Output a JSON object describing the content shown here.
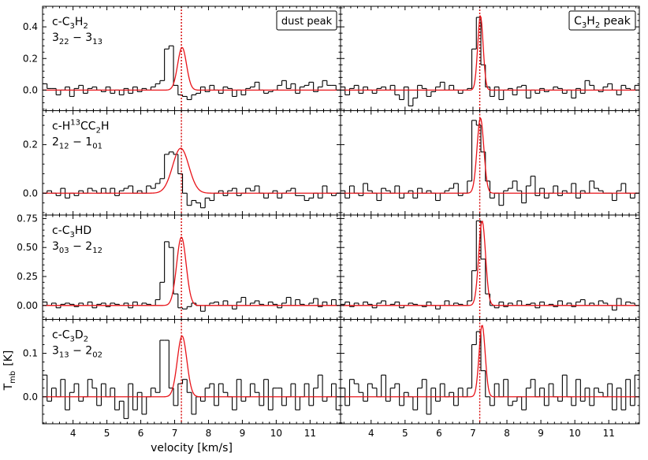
{
  "chart_data": {
    "type": "line",
    "xlabel": "velocity   [km/s]",
    "ylabel_main": "T",
    "ylabel_sub": "mb",
    "ylabel_unit": "[K]",
    "xlim": [
      3.1,
      11.9
    ],
    "xticks": [
      4,
      5,
      6,
      7,
      8,
      9,
      10,
      11
    ],
    "reference_velocity": 7.2,
    "column_titles": [
      {
        "main": "dust peak"
      },
      {
        "pre": "C",
        "s1": "3",
        "mid": "H",
        "s2": "2",
        "post": " peak"
      }
    ],
    "rows": [
      {
        "label_parts": [
          "c-C",
          {
            "sub": "3"
          },
          "H",
          {
            "sub": "2"
          }
        ],
        "transition_parts": [
          "3",
          {
            "sub": "22"
          },
          " − 3",
          {
            "sub": "13"
          }
        ],
        "ylim": [
          -0.13,
          0.53
        ],
        "yticks": [
          0.0,
          0.2,
          0.4
        ],
        "ytick_labels": [
          "0.0",
          "0.2",
          "0.4"
        ],
        "panels": [
          {
            "fit": {
              "amp": 0.27,
              "center": 7.22,
              "sigma": 0.13
            },
            "spectrum": [
              0.04,
              0.01,
              0.01,
              -0.03,
              0.0,
              0.02,
              -0.04,
              0.01,
              0.03,
              -0.02,
              0.01,
              0.02,
              0.0,
              -0.01,
              0.02,
              -0.02,
              0.0,
              -0.03,
              0.01,
              -0.02,
              0.02,
              -0.01,
              0.01,
              0.0,
              0.02,
              0.04,
              0.06,
              0.26,
              0.28,
              0.03,
              -0.03,
              -0.04,
              -0.06,
              -0.03,
              -0.02,
              0.02,
              -0.01,
              0.03,
              0.0,
              -0.02,
              0.02,
              0.01,
              -0.04,
              0.0,
              -0.03,
              0.01,
              0.02,
              0.05,
              0.0,
              -0.02,
              -0.01,
              0.0,
              0.03,
              0.06,
              0.01,
              0.04,
              -0.02,
              0.02,
              0.03,
              0.05,
              -0.01,
              0.02,
              0.06,
              0.03,
              0.03,
              0.0
            ]
          },
          {
            "fit": {
              "amp": 0.47,
              "center": 7.22,
              "sigma": 0.08
            },
            "spectrum": [
              0.02,
              -0.03,
              0.01,
              0.03,
              -0.02,
              0.02,
              0.0,
              -0.02,
              0.01,
              0.02,
              0.0,
              0.03,
              -0.03,
              -0.06,
              0.02,
              -0.1,
              -0.05,
              0.03,
              0.01,
              -0.04,
              -0.01,
              0.02,
              0.05,
              0.0,
              0.03,
              0.0,
              -0.02,
              0.0,
              0.01,
              0.26,
              0.46,
              0.16,
              0.02,
              -0.04,
              0.02,
              -0.06,
              0.0,
              0.01,
              -0.03,
              0.02,
              0.03,
              -0.05,
              0.0,
              -0.02,
              0.01,
              -0.01,
              0.0,
              0.02,
              0.01,
              -0.02,
              0.0,
              -0.05,
              0.01,
              -0.02,
              0.06,
              0.03,
              0.0,
              -0.01,
              0.02,
              0.04,
              0.0,
              -0.03,
              0.03,
              0.01,
              0.0,
              0.03
            ]
          }
        ]
      },
      {
        "label_parts": [
          "c-H",
          {
            "sup": "13"
          },
          "CC",
          {
            "sub": "2"
          },
          "H"
        ],
        "transition_parts": [
          "2",
          {
            "sub": "12"
          },
          " − 1",
          {
            "sub": "01"
          }
        ],
        "ylim": [
          -0.09,
          0.34
        ],
        "yticks": [
          0.0,
          0.2
        ],
        "ytick_labels": [
          "0.0",
          "0.2"
        ],
        "panels": [
          {
            "fit": {
              "amp": 0.185,
              "center": 7.18,
              "sigma": 0.24
            },
            "spectrum": [
              0.0,
              0.01,
              0.0,
              -0.01,
              0.02,
              -0.02,
              0.0,
              -0.01,
              0.01,
              0.0,
              0.02,
              0.01,
              0.0,
              0.02,
              0.0,
              0.02,
              -0.01,
              0.01,
              0.02,
              0.03,
              0.0,
              0.01,
              0.0,
              0.03,
              0.02,
              0.04,
              0.06,
              0.16,
              0.17,
              0.16,
              0.08,
              0.0,
              -0.05,
              -0.03,
              -0.04,
              -0.06,
              -0.02,
              -0.03,
              0.0,
              0.01,
              -0.01,
              0.01,
              0.02,
              -0.01,
              0.0,
              0.02,
              0.01,
              0.03,
              0.0,
              -0.02,
              0.0,
              0.01,
              -0.02,
              0.0,
              0.01,
              0.02,
              -0.01,
              -0.01,
              -0.03,
              -0.02,
              0.0,
              -0.02,
              0.03,
              0.0,
              -0.01,
              0.0
            ]
          },
          {
            "fit": {
              "amp": 0.31,
              "center": 7.22,
              "sigma": 0.1
            },
            "spectrum": [
              0.01,
              -0.02,
              0.03,
              0.0,
              -0.01,
              0.04,
              0.01,
              0.0,
              -0.03,
              0.02,
              0.01,
              0.0,
              0.03,
              -0.02,
              0.0,
              0.01,
              -0.02,
              0.02,
              0.0,
              0.01,
              0.0,
              -0.03,
              0.0,
              0.01,
              0.02,
              0.04,
              -0.01,
              0.0,
              0.05,
              0.3,
              0.28,
              0.17,
              0.05,
              -0.02,
              0.0,
              -0.05,
              0.01,
              0.02,
              0.05,
              0.01,
              -0.04,
              0.03,
              0.07,
              -0.01,
              0.02,
              -0.02,
              0.0,
              0.03,
              -0.01,
              0.01,
              0.0,
              0.04,
              -0.02,
              0.01,
              0.0,
              0.05,
              0.02,
              0.01,
              0.0,
              0.0,
              -0.03,
              0.01,
              0.04,
              0.0,
              -0.02,
              0.0
            ]
          }
        ]
      },
      {
        "label_parts": [
          "c-C",
          {
            "sub": "3"
          },
          "HD"
        ],
        "transition_parts": [
          "3",
          {
            "sub": "03"
          },
          " − 2",
          {
            "sub": "12"
          }
        ],
        "ylim": [
          -0.12,
          0.78
        ],
        "yticks": [
          0.0,
          0.25,
          0.5,
          0.75
        ],
        "ytick_labels": [
          "0.00",
          "0.25",
          "0.50",
          "0.75"
        ],
        "panels": [
          {
            "fit": {
              "amp": 0.59,
              "center": 7.2,
              "sigma": 0.14
            },
            "spectrum": [
              0.03,
              0.0,
              0.02,
              -0.02,
              0.01,
              0.02,
              0.01,
              -0.01,
              0.02,
              0.0,
              0.03,
              -0.02,
              0.01,
              0.02,
              -0.01,
              0.02,
              0.01,
              0.0,
              0.02,
              -0.02,
              0.03,
              0.0,
              0.02,
              0.01,
              0.0,
              0.05,
              0.2,
              0.55,
              0.5,
              0.1,
              -0.02,
              -0.03,
              -0.01,
              0.02,
              0.0,
              -0.05,
              0.0,
              0.02,
              0.03,
              0.0,
              0.04,
              0.0,
              -0.03,
              0.03,
              0.07,
              0.0,
              0.02,
              0.04,
              0.01,
              0.0,
              0.03,
              0.01,
              -0.02,
              0.02,
              0.07,
              0.0,
              0.05,
              0.01,
              0.0,
              0.02,
              0.06,
              -0.01,
              0.03,
              0.0,
              0.05,
              0.0
            ]
          },
          {
            "fit": {
              "amp": 0.73,
              "center": 7.27,
              "sigma": 0.1
            },
            "spectrum": [
              0.01,
              0.03,
              -0.01,
              0.02,
              0.0,
              0.03,
              0.01,
              -0.02,
              0.02,
              0.04,
              0.0,
              0.01,
              0.03,
              -0.02,
              0.0,
              0.02,
              0.01,
              0.0,
              -0.01,
              0.03,
              0.0,
              -0.03,
              0.0,
              0.04,
              0.0,
              0.02,
              0.01,
              0.0,
              0.04,
              0.3,
              0.73,
              0.4,
              0.1,
              0.0,
              -0.02,
              0.03,
              -0.01,
              0.02,
              0.0,
              0.04,
              0.0,
              0.01,
              0.02,
              -0.02,
              0.03,
              0.0,
              0.01,
              -0.01,
              0.04,
              0.0,
              0.02,
              -0.01,
              0.03,
              0.05,
              0.0,
              0.02,
              0.0,
              0.04,
              0.02,
              0.0,
              -0.04,
              0.06,
              0.0,
              0.03,
              0.02,
              0.0
            ]
          }
        ]
      },
      {
        "label_parts": [
          "c-C",
          {
            "sub": "3"
          },
          "D",
          {
            "sub": "2"
          }
        ],
        "transition_parts": [
          "3",
          {
            "sub": "13"
          },
          " − 2",
          {
            "sub": "02"
          }
        ],
        "ylim": [
          -0.062,
          0.178
        ],
        "yticks": [
          0.0,
          0.1
        ],
        "ytick_labels": [
          "0.0",
          "0.1"
        ],
        "panels": [
          {
            "fit": {
              "amp": 0.14,
              "center": 7.22,
              "sigma": 0.14
            },
            "spectrum": [
              0.05,
              -0.01,
              0.02,
              0.0,
              0.04,
              -0.03,
              0.01,
              0.03,
              -0.01,
              0.0,
              0.04,
              0.02,
              -0.02,
              0.03,
              0.0,
              0.02,
              -0.03,
              -0.01,
              -0.05,
              0.03,
              -0.03,
              0.01,
              -0.04,
              0.0,
              0.02,
              0.01,
              0.13,
              0.13,
              0.02,
              -0.02,
              0.03,
              0.04,
              0.01,
              -0.04,
              0.0,
              -0.01,
              0.02,
              0.03,
              -0.02,
              0.03,
              0.01,
              0.0,
              -0.03,
              0.04,
              -0.01,
              0.0,
              0.03,
              0.01,
              -0.02,
              0.04,
              -0.03,
              0.02,
              0.02,
              -0.02,
              0.0,
              0.03,
              -0.03,
              0.0,
              0.03,
              -0.02,
              0.02,
              0.05,
              -0.01,
              0.0,
              0.03,
              -0.03
            ]
          },
          {
            "fit": {
              "amp": 0.165,
              "center": 7.27,
              "sigma": 0.09
            },
            "spectrum": [
              0.02,
              -0.02,
              0.04,
              0.03,
              0.01,
              -0.01,
              0.03,
              0.02,
              0.0,
              0.05,
              -0.01,
              0.02,
              0.03,
              -0.02,
              0.01,
              0.0,
              -0.03,
              0.02,
              0.04,
              -0.04,
              0.02,
              -0.01,
              0.03,
              0.0,
              0.01,
              -0.02,
              0.02,
              0.0,
              0.02,
              0.12,
              0.15,
              0.06,
              0.0,
              -0.02,
              0.03,
              0.0,
              0.04,
              -0.02,
              -0.01,
              0.0,
              -0.03,
              0.02,
              0.04,
              0.0,
              0.02,
              -0.02,
              0.03,
              0.0,
              -0.01,
              0.05,
              0.0,
              -0.02,
              0.04,
              -0.01,
              0.02,
              -0.02,
              0.02,
              0.01,
              0.0,
              0.03,
              -0.03,
              0.02,
              -0.03,
              0.04,
              -0.02,
              0.05
            ]
          }
        ]
      }
    ]
  }
}
